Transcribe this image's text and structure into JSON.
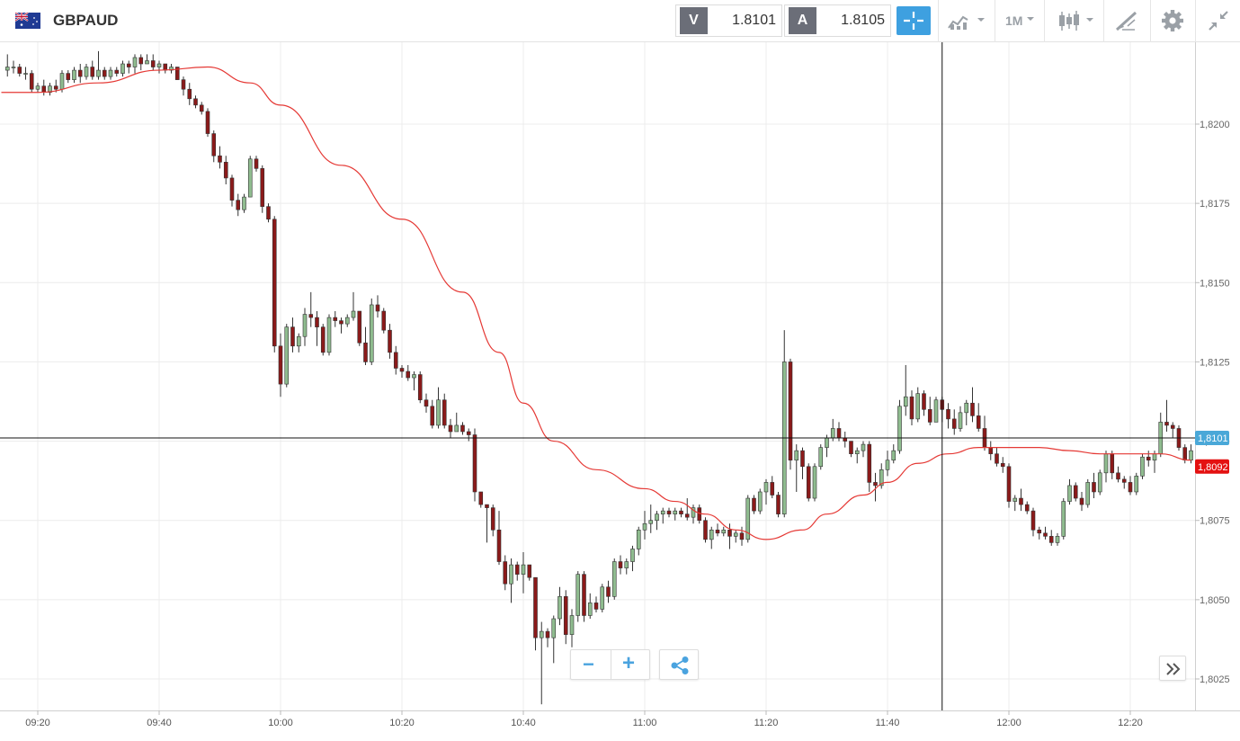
{
  "header": {
    "symbol": "GBPAUD",
    "sell_label": "V",
    "sell_price": "1.8101",
    "buy_label": "A",
    "buy_price": "1.8105",
    "timeframe": "1M",
    "icons": [
      "flag-icon",
      "crosshair-icon",
      "indicator-icon",
      "candlestick-icon",
      "drawing-icon",
      "gear-icon",
      "collapse-icon"
    ]
  },
  "controls": {
    "zoom_out": "−",
    "zoom_in": "+",
    "share_icon": "share-icon",
    "scroll_icon": "double-chevron-right-icon"
  },
  "chart_data": {
    "type": "candlestick",
    "title": "",
    "xlabel": "",
    "ylabel": "",
    "ylim": [
      1.8017,
      1.8227
    ],
    "x_ticks": [
      "09:20",
      "09:40",
      "10:00",
      "10:20",
      "10:40",
      "11:00",
      "11:20",
      "11:40",
      "12:00",
      "12:20"
    ],
    "y_ticks": [
      "1,8200",
      "1,8175",
      "1,8150",
      "1,8125",
      "1,8100",
      "1,8075",
      "1,8050",
      "1,8025"
    ],
    "crosshair_time": "11:49",
    "crosshair_price": "1,8101",
    "current_price": "1,8092",
    "colors": {
      "up": "#8fbc8f",
      "down": "#8b1a1a",
      "ma": "#e53935",
      "crosshair_tag": "#4aa8d8",
      "last_tag": "#e41111"
    },
    "ohlc_start": "09:14",
    "ohlc": [
      [
        1.8215,
        1.8218,
        1.8214,
        1.8217
      ],
      [
        1.8217,
        1.8222,
        1.8215,
        1.8218
      ],
      [
        1.8218,
        1.822,
        1.8216,
        1.8218
      ],
      [
        1.8218,
        1.8219,
        1.8215,
        1.8216
      ],
      [
        1.8216,
        1.8218,
        1.8214,
        1.8216
      ],
      [
        1.8216,
        1.8217,
        1.821,
        1.8211
      ],
      [
        1.8211,
        1.8213,
        1.821,
        1.8212
      ],
      [
        1.8212,
        1.8214,
        1.8209,
        1.821
      ],
      [
        1.821,
        1.8213,
        1.8209,
        1.8212
      ],
      [
        1.8212,
        1.8214,
        1.821,
        1.8211
      ],
      [
        1.8211,
        1.8217,
        1.821,
        1.8216
      ],
      [
        1.8216,
        1.8217,
        1.8213,
        1.8214
      ],
      [
        1.8214,
        1.8218,
        1.8213,
        1.8217
      ],
      [
        1.8217,
        1.8219,
        1.8213,
        1.8215
      ],
      [
        1.8215,
        1.8219,
        1.8214,
        1.8218
      ],
      [
        1.8218,
        1.822,
        1.8214,
        1.8215
      ],
      [
        1.8215,
        1.8223,
        1.8214,
        1.8217
      ],
      [
        1.8217,
        1.8218,
        1.8214,
        1.8215
      ],
      [
        1.8215,
        1.8218,
        1.8214,
        1.8217
      ],
      [
        1.8217,
        1.8218,
        1.8215,
        1.8216
      ],
      [
        1.8216,
        1.822,
        1.8215,
        1.8219
      ],
      [
        1.8219,
        1.822,
        1.8216,
        1.8218
      ],
      [
        1.8218,
        1.8222,
        1.8216,
        1.8221
      ],
      [
        1.8221,
        1.8222,
        1.8217,
        1.8219
      ],
      [
        1.8219,
        1.8222,
        1.8219,
        1.822
      ],
      [
        1.822,
        1.8222,
        1.8217,
        1.8218
      ],
      [
        1.8218,
        1.822,
        1.8216,
        1.8219
      ],
      [
        1.8219,
        1.8219,
        1.8216,
        1.8217
      ],
      [
        1.8217,
        1.8219,
        1.8216,
        1.8218
      ],
      [
        1.8218,
        1.8218,
        1.8214,
        1.8214
      ],
      [
        1.8214,
        1.8215,
        1.8209,
        1.8211
      ],
      [
        1.8211,
        1.8213,
        1.8206,
        1.8208
      ],
      [
        1.8208,
        1.8209,
        1.8205,
        1.8206
      ],
      [
        1.8206,
        1.8207,
        1.8203,
        1.8204
      ],
      [
        1.8204,
        1.8205,
        1.8196,
        1.8197
      ],
      [
        1.8197,
        1.8198,
        1.8188,
        1.819
      ],
      [
        1.819,
        1.8193,
        1.8186,
        1.8188
      ],
      [
        1.8188,
        1.819,
        1.8181,
        1.8183
      ],
      [
        1.8183,
        1.8184,
        1.8174,
        1.8176
      ],
      [
        1.8176,
        1.8178,
        1.8171,
        1.8173
      ],
      [
        1.8173,
        1.8178,
        1.8172,
        1.8177
      ],
      [
        1.8177,
        1.819,
        1.8177,
        1.8189
      ],
      [
        1.8189,
        1.819,
        1.8185,
        1.8186
      ],
      [
        1.8186,
        1.8187,
        1.8172,
        1.8174
      ],
      [
        1.8174,
        1.8175,
        1.8169,
        1.817
      ],
      [
        1.817,
        1.8171,
        1.8128,
        1.813
      ],
      [
        1.813,
        1.8134,
        1.8114,
        1.8118
      ],
      [
        1.8118,
        1.8137,
        1.8117,
        1.8136
      ],
      [
        1.8136,
        1.8139,
        1.8128,
        1.813
      ],
      [
        1.813,
        1.8134,
        1.8128,
        1.8133
      ],
      [
        1.8133,
        1.8142,
        1.813,
        1.814
      ],
      [
        1.814,
        1.8147,
        1.8136,
        1.8139
      ],
      [
        1.8139,
        1.8141,
        1.813,
        1.8136
      ],
      [
        1.8136,
        1.8137,
        1.8127,
        1.8128
      ],
      [
        1.8128,
        1.814,
        1.8127,
        1.8139
      ],
      [
        1.8139,
        1.8141,
        1.8136,
        1.8138
      ],
      [
        1.8138,
        1.8139,
        1.8134,
        1.8137
      ],
      [
        1.8137,
        1.814,
        1.8136,
        1.8139
      ],
      [
        1.8139,
        1.8147,
        1.8138,
        1.8141
      ],
      [
        1.8141,
        1.8141,
        1.813,
        1.8131
      ],
      [
        1.8131,
        1.8136,
        1.8124,
        1.8125
      ],
      [
        1.8125,
        1.8145,
        1.8124,
        1.8143
      ],
      [
        1.8143,
        1.8146,
        1.8139,
        1.8141
      ],
      [
        1.8141,
        1.8142,
        1.8134,
        1.8135
      ],
      [
        1.8135,
        1.8137,
        1.8126,
        1.8128
      ],
      [
        1.8128,
        1.813,
        1.8121,
        1.8123
      ],
      [
        1.8123,
        1.8124,
        1.812,
        1.8122
      ],
      [
        1.8122,
        1.8124,
        1.8119,
        1.812
      ],
      [
        1.812,
        1.8122,
        1.8116,
        1.8121
      ],
      [
        1.8121,
        1.8122,
        1.8112,
        1.8113
      ],
      [
        1.8113,
        1.8115,
        1.8109,
        1.8111
      ],
      [
        1.8111,
        1.8113,
        1.8104,
        1.8105
      ],
      [
        1.8105,
        1.8117,
        1.8104,
        1.8113
      ],
      [
        1.8113,
        1.8115,
        1.8104,
        1.8105
      ],
      [
        1.8105,
        1.8107,
        1.8101,
        1.8103
      ],
      [
        1.8103,
        1.8109,
        1.8103,
        1.8105
      ],
      [
        1.8105,
        1.8106,
        1.8102,
        1.8103
      ],
      [
        1.8103,
        1.8104,
        1.81,
        1.8102
      ],
      [
        1.8102,
        1.8104,
        1.8081,
        1.8084
      ],
      [
        1.8084,
        1.8084,
        1.8079,
        1.808
      ],
      [
        1.808,
        1.808,
        1.8068,
        1.8079
      ],
      [
        1.8079,
        1.808,
        1.807,
        1.8072
      ],
      [
        1.8072,
        1.8078,
        1.8061,
        1.8062
      ],
      [
        1.8062,
        1.8064,
        1.8053,
        1.8055
      ],
      [
        1.8055,
        1.8063,
        1.8049,
        1.8061
      ],
      [
        1.8061,
        1.8062,
        1.8056,
        1.8058
      ],
      [
        1.8058,
        1.8065,
        1.8052,
        1.8061
      ],
      [
        1.8061,
        1.8061,
        1.8056,
        1.8057
      ],
      [
        1.8057,
        1.8057,
        1.8034,
        1.8038
      ],
      [
        1.8038,
        1.8043,
        1.8017,
        1.804
      ],
      [
        1.804,
        1.8041,
        1.8035,
        1.8038
      ],
      [
        1.8038,
        1.8045,
        1.803,
        1.8044
      ],
      [
        1.8044,
        1.8054,
        1.8042,
        1.8051
      ],
      [
        1.8051,
        1.8053,
        1.8036,
        1.8039
      ],
      [
        1.8039,
        1.8047,
        1.8035,
        1.8045
      ],
      [
        1.8045,
        1.8059,
        1.8043,
        1.8058
      ],
      [
        1.8058,
        1.8059,
        1.8043,
        1.8045
      ],
      [
        1.8045,
        1.8052,
        1.8044,
        1.8049
      ],
      [
        1.8049,
        1.8051,
        1.8046,
        1.8047
      ],
      [
        1.8047,
        1.8055,
        1.8046,
        1.8054
      ],
      [
        1.8054,
        1.8056,
        1.8049,
        1.8051
      ],
      [
        1.8051,
        1.8063,
        1.805,
        1.8062
      ],
      [
        1.8062,
        1.8064,
        1.8058,
        1.806
      ],
      [
        1.806,
        1.8063,
        1.8058,
        1.8062
      ],
      [
        1.8062,
        1.8067,
        1.8059,
        1.8066
      ],
      [
        1.8066,
        1.8073,
        1.8064,
        1.8072
      ],
      [
        1.8072,
        1.8078,
        1.8069,
        1.8074
      ],
      [
        1.8074,
        1.808,
        1.8071,
        1.8075
      ],
      [
        1.8075,
        1.8078,
        1.8072,
        1.8077
      ],
      [
        1.8077,
        1.8079,
        1.8074,
        1.8078
      ],
      [
        1.8078,
        1.8079,
        1.8076,
        1.8077
      ],
      [
        1.8077,
        1.8079,
        1.8075,
        1.8078
      ],
      [
        1.8078,
        1.8079,
        1.8076,
        1.8077
      ],
      [
        1.8077,
        1.8082,
        1.8075,
        1.8076
      ],
      [
        1.8076,
        1.808,
        1.8074,
        1.8079
      ],
      [
        1.8079,
        1.808,
        1.8074,
        1.8075
      ],
      [
        1.8075,
        1.8076,
        1.8068,
        1.8069
      ],
      [
        1.8069,
        1.8073,
        1.8066,
        1.8072
      ],
      [
        1.8072,
        1.8074,
        1.807,
        1.8071
      ],
      [
        1.8071,
        1.8073,
        1.807,
        1.8072
      ],
      [
        1.8072,
        1.8074,
        1.8066,
        1.807
      ],
      [
        1.807,
        1.8072,
        1.8068,
        1.8071
      ],
      [
        1.8071,
        1.8073,
        1.8067,
        1.8069
      ],
      [
        1.8069,
        1.8083,
        1.8068,
        1.8082
      ],
      [
        1.8082,
        1.8083,
        1.8077,
        1.8078
      ],
      [
        1.8078,
        1.8085,
        1.8077,
        1.8084
      ],
      [
        1.8084,
        1.8088,
        1.808,
        1.8087
      ],
      [
        1.8087,
        1.8089,
        1.8082,
        1.8083
      ],
      [
        1.8083,
        1.8084,
        1.8076,
        1.8077
      ],
      [
        1.8077,
        1.8135,
        1.8076,
        1.8125
      ],
      [
        1.8125,
        1.8126,
        1.8091,
        1.8094
      ],
      [
        1.8094,
        1.8099,
        1.8084,
        1.8097
      ],
      [
        1.8097,
        1.8098,
        1.8088,
        1.8092
      ],
      [
        1.8092,
        1.8093,
        1.8081,
        1.8082
      ],
      [
        1.8082,
        1.8093,
        1.8081,
        1.8092
      ],
      [
        1.8092,
        1.8099,
        1.8091,
        1.8098
      ],
      [
        1.8098,
        1.8102,
        1.8095,
        1.8101
      ],
      [
        1.8101,
        1.8107,
        1.81,
        1.8104
      ],
      [
        1.8104,
        1.8106,
        1.81,
        1.8101
      ],
      [
        1.8101,
        1.8103,
        1.8098,
        1.81
      ],
      [
        1.81,
        1.81,
        1.8095,
        1.8096
      ],
      [
        1.8096,
        1.8098,
        1.8093,
        1.8097
      ],
      [
        1.8097,
        1.81,
        1.8095,
        1.8099
      ],
      [
        1.8099,
        1.81,
        1.8084,
        1.8087
      ],
      [
        1.8087,
        1.809,
        1.8081,
        1.8086
      ],
      [
        1.8086,
        1.8093,
        1.8085,
        1.8091
      ],
      [
        1.8091,
        1.8097,
        1.8089,
        1.8094
      ],
      [
        1.8094,
        1.8099,
        1.8093,
        1.8097
      ],
      [
        1.8097,
        1.8113,
        1.8096,
        1.8111
      ],
      [
        1.8111,
        1.8124,
        1.8108,
        1.8114
      ],
      [
        1.8114,
        1.8116,
        1.8105,
        1.8107
      ],
      [
        1.8107,
        1.8117,
        1.8106,
        1.8115
      ],
      [
        1.8115,
        1.8116,
        1.8108,
        1.811
      ],
      [
        1.811,
        1.8114,
        1.8105,
        1.8106
      ],
      [
        1.8106,
        1.8114,
        1.8106,
        1.8113
      ],
      [
        1.8113,
        1.8114,
        1.8106,
        1.811
      ],
      [
        1.811,
        1.8112,
        1.8104,
        1.8107
      ],
      [
        1.8107,
        1.811,
        1.8102,
        1.8104
      ],
      [
        1.8104,
        1.8111,
        1.8103,
        1.8109
      ],
      [
        1.8109,
        1.8113,
        1.8105,
        1.8112
      ],
      [
        1.8112,
        1.8117,
        1.8106,
        1.8108
      ],
      [
        1.8108,
        1.8112,
        1.8103,
        1.8104
      ],
      [
        1.8104,
        1.8108,
        1.8097,
        1.8098
      ],
      [
        1.8098,
        1.81,
        1.8094,
        1.8096
      ],
      [
        1.8096,
        1.8098,
        1.8092,
        1.8093
      ],
      [
        1.8093,
        1.8095,
        1.809,
        1.8092
      ],
      [
        1.8092,
        1.8093,
        1.8079,
        1.8081
      ],
      [
        1.8081,
        1.8083,
        1.8078,
        1.8082
      ],
      [
        1.8082,
        1.8085,
        1.8078,
        1.808
      ],
      [
        1.808,
        1.8081,
        1.8077,
        1.8078
      ],
      [
        1.8078,
        1.8079,
        1.807,
        1.8072
      ],
      [
        1.8072,
        1.8073,
        1.8069,
        1.8071
      ],
      [
        1.8071,
        1.8073,
        1.8069,
        1.807
      ],
      [
        1.807,
        1.8072,
        1.8067,
        1.8068
      ],
      [
        1.8068,
        1.8071,
        1.8067,
        1.807
      ],
      [
        1.807,
        1.8082,
        1.8069,
        1.8081
      ],
      [
        1.8081,
        1.8088,
        1.808,
        1.8086
      ],
      [
        1.8086,
        1.8087,
        1.8081,
        1.8082
      ],
      [
        1.8082,
        1.8084,
        1.8078,
        1.808
      ],
      [
        1.808,
        1.8088,
        1.8079,
        1.8087
      ],
      [
        1.8087,
        1.809,
        1.8082,
        1.8084
      ],
      [
        1.8084,
        1.8091,
        1.8083,
        1.809
      ],
      [
        1.809,
        1.8097,
        1.8087,
        1.8096
      ],
      [
        1.8096,
        1.8097,
        1.8088,
        1.809
      ],
      [
        1.809,
        1.8092,
        1.8087,
        1.8088
      ],
      [
        1.8088,
        1.8089,
        1.8085,
        1.8087
      ],
      [
        1.8087,
        1.8089,
        1.8083,
        1.8084
      ],
      [
        1.8084,
        1.809,
        1.8083,
        1.8089
      ],
      [
        1.8089,
        1.8096,
        1.8088,
        1.8095
      ],
      [
        1.8095,
        1.8097,
        1.8092,
        1.8094
      ],
      [
        1.8094,
        1.8097,
        1.809,
        1.8096
      ],
      [
        1.8096,
        1.8109,
        1.8095,
        1.8106
      ],
      [
        1.8106,
        1.8113,
        1.8103,
        1.8105
      ],
      [
        1.8105,
        1.8106,
        1.8101,
        1.8104
      ],
      [
        1.8104,
        1.8105,
        1.8097,
        1.8098
      ],
      [
        1.8098,
        1.8099,
        1.8093,
        1.8094
      ],
      [
        1.8094,
        1.8099,
        1.8093,
        1.8097
      ],
      [
        1.8097,
        1.8098,
        1.8091,
        1.8092
      ]
    ],
    "series": [
      {
        "name": "",
        "values_times": [
          "09:14",
          "09:20",
          "09:30",
          "09:40",
          "09:48",
          "09:55",
          "10:00",
          "10:10",
          "10:20",
          "10:30",
          "10:36",
          "10:40",
          "10:45",
          "10:52",
          "11:00",
          "11:05",
          "11:10",
          "11:15",
          "11:20",
          "11:26",
          "11:30",
          "11:36",
          "11:40",
          "11:45",
          "11:50",
          "11:55",
          "12:00",
          "12:05",
          "12:10",
          "12:15",
          "12:20",
          "12:25",
          "12:30"
        ],
        "values": [
          1.821,
          1.821,
          1.8213,
          1.8217,
          1.8218,
          1.8213,
          1.8206,
          1.8187,
          1.817,
          1.8147,
          1.8128,
          1.8112,
          1.81,
          1.8091,
          1.8085,
          1.8081,
          1.8077,
          1.8072,
          1.8069,
          1.8072,
          1.8077,
          1.8083,
          1.8087,
          1.8093,
          1.8096,
          1.8098,
          1.8098,
          1.8098,
          1.8097,
          1.8096,
          1.8096,
          1.8096,
          1.8094
        ]
      }
    ]
  }
}
